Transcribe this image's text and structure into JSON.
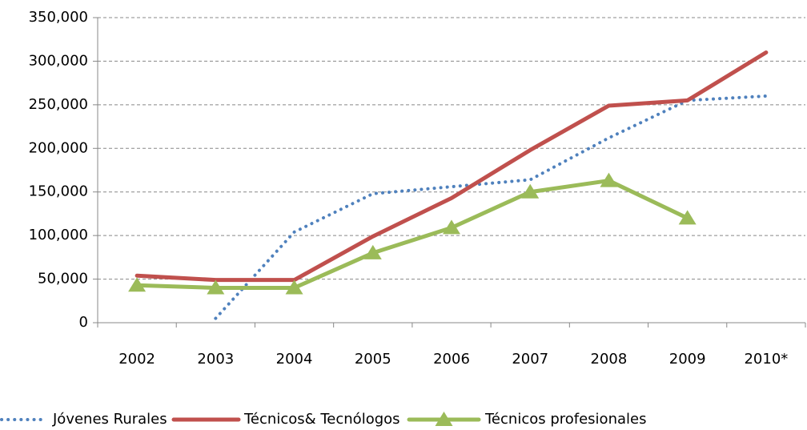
{
  "chart_data": {
    "type": "line",
    "categories": [
      "2002",
      "2003",
      "2004",
      "2005",
      "2006",
      "2007",
      "2008",
      "2009",
      "2010*"
    ],
    "series": [
      {
        "name": "Jóvenes Rurales",
        "color": "#4f81bd",
        "style": "dotted",
        "values": [
          null,
          5000,
          104000,
          148000,
          156000,
          164000,
          212000,
          255000,
          260000
        ]
      },
      {
        "name": "Técnicos& Tecnólogos",
        "color": "#c0504d",
        "style": "solid",
        "values": [
          54000,
          49000,
          49000,
          99000,
          143000,
          198000,
          249000,
          255000,
          310000
        ]
      },
      {
        "name": "Técnicos profesionales",
        "color": "#9bbb59",
        "style": "solid",
        "marker": "triangle",
        "values": [
          43000,
          40000,
          40000,
          80000,
          109000,
          150000,
          163000,
          120000,
          null
        ]
      }
    ],
    "ylim": [
      0,
      350000
    ],
    "yticks": [
      0,
      {
        "value": 50000,
        "label": "50,000"
      },
      {
        "value": 100000,
        "label": "100,000"
      },
      {
        "value": 150000,
        "label": "150,000"
      },
      {
        "value": 200000,
        "label": "200,000"
      },
      {
        "value": 250000,
        "label": "250,000"
      },
      {
        "value": 300000,
        "label": "300,000"
      },
      {
        "value": 350000,
        "label": "350,000"
      }
    ],
    "grid": true,
    "legend": "bottom"
  }
}
